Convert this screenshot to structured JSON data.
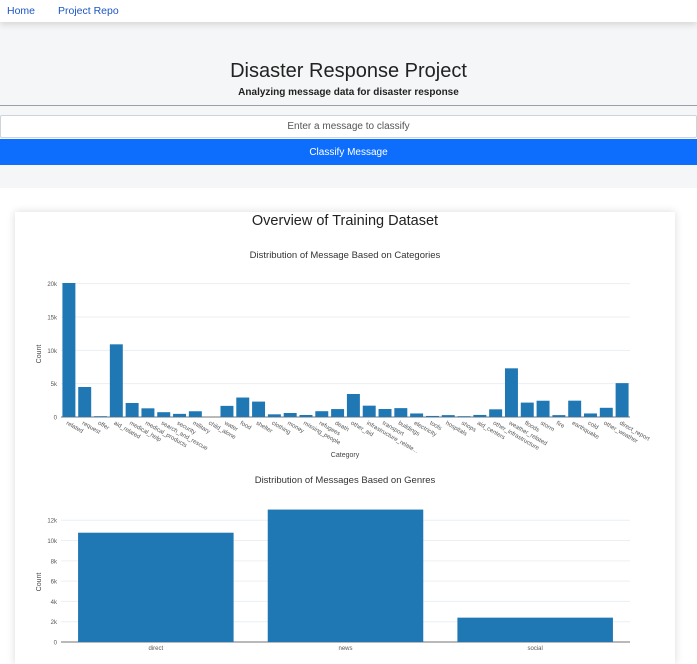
{
  "nav": {
    "home": "Home",
    "repo": "Project Repo"
  },
  "header": {
    "title": "Disaster Response Project",
    "subtitle": "Analyzing message data for disaster response"
  },
  "form": {
    "placeholder": "Enter a message to classify",
    "button": "Classify Message"
  },
  "overview": {
    "title": "Overview of Training Dataset"
  },
  "colors": {
    "bar": "#1f77b4",
    "button": "#0d6efd",
    "link": "#1a56c4"
  },
  "chart_data": [
    {
      "type": "bar",
      "title": "Distribution of Message Based on Categories",
      "xlabel": "Category",
      "ylabel": "Count",
      "ylim": [
        0,
        21000
      ],
      "yticks": [
        0,
        5000,
        10000,
        15000,
        20000
      ],
      "ytick_labels": [
        "0",
        "5k",
        "10k",
        "15k",
        "20k"
      ],
      "grid": true,
      "categories": [
        "related",
        "request",
        "offer",
        "aid_related",
        "medical_help",
        "medical_products",
        "search_and_rescue",
        "security",
        "military",
        "child_alone",
        "water",
        "food",
        "shelter",
        "clothing",
        "money",
        "missing_people",
        "refugees",
        "death",
        "other_aid",
        "infrastructure_related",
        "transport",
        "buildings",
        "electricity",
        "tools",
        "hospitals",
        "shops",
        "aid_centers",
        "other_infrastructure",
        "weather_related",
        "floods",
        "storm",
        "fire",
        "earthquake",
        "cold",
        "other_weather",
        "direct_report"
      ],
      "tick_labels": [
        "related",
        "request",
        "offer",
        "aid_related",
        "medical_help",
        "medical_products",
        "search_and_rescue",
        "security",
        "military",
        "child_alone",
        "water",
        "food",
        "shelter",
        "clothing",
        "money",
        "missing_people",
        "refugees",
        "death",
        "other_aid",
        "infrastructure_relate...",
        "transport",
        "buildings",
        "electricity",
        "tools",
        "hospitals",
        "shops",
        "aid_centers",
        "other_infrastructure",
        "weather_related",
        "floods",
        "storm",
        "fire",
        "earthquake",
        "cold",
        "other_weather",
        "direct_report"
      ],
      "values": [
        20100,
        4500,
        120,
        10900,
        2100,
        1300,
        720,
        470,
        860,
        0,
        1670,
        2920,
        2310,
        400,
        600,
        300,
        870,
        1190,
        3450,
        1700,
        1200,
        1330,
        530,
        160,
        280,
        120,
        310,
        1150,
        7300,
        2160,
        2440,
        280,
        2450,
        530,
        1380,
        5080
      ]
    },
    {
      "type": "bar",
      "title": "Distribution of Messages Based on Genres",
      "xlabel": "",
      "ylabel": "Count",
      "ylim": [
        0,
        13500
      ],
      "yticks": [
        0,
        2000,
        4000,
        6000,
        8000,
        10000,
        12000
      ],
      "ytick_labels": [
        "0",
        "2k",
        "4k",
        "6k",
        "8k",
        "10k",
        "12k"
      ],
      "grid": true,
      "categories": [
        "direct",
        "news",
        "social"
      ],
      "tick_labels": [
        "direct",
        "news",
        "social"
      ],
      "values": [
        10770,
        13050,
        2400
      ]
    }
  ]
}
